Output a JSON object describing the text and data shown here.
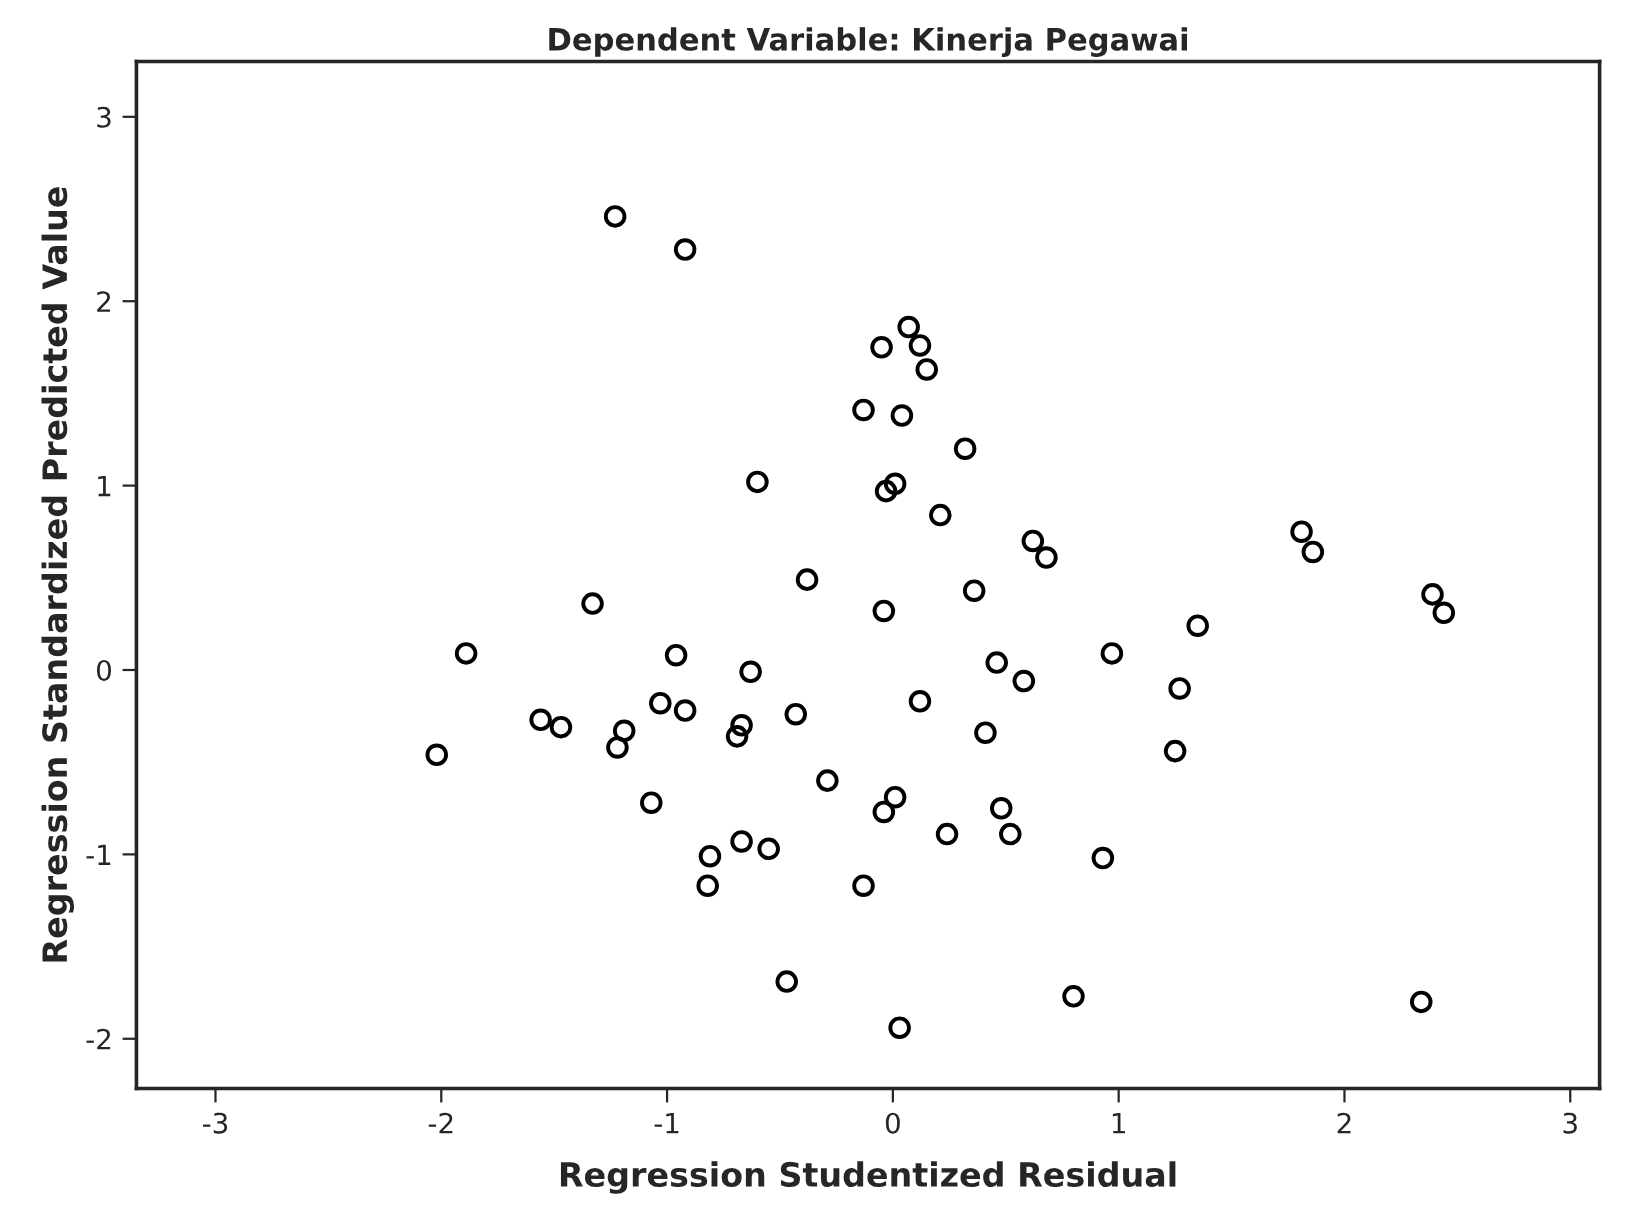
{
  "chart_data": {
    "type": "scatter",
    "title": "Dependent Variable: Kinerja Pegawai",
    "xlabel": "Regression Studentized Residual",
    "ylabel": "Regression Standardized Predicted Value",
    "series": [
      {
        "color": "#000000",
        "x": [
          -1.23,
          -0.92,
          0.07,
          -0.05,
          0.12,
          0.15,
          -0.13,
          0.04,
          0.32,
          -0.6,
          -0.03,
          0.01,
          0.21,
          0.62,
          0.68,
          -0.38,
          -1.33,
          -0.04,
          0.36,
          -1.89,
          -0.96,
          -0.63,
          0.46,
          0.58,
          0.12,
          -2.02,
          -1.56,
          -1.47,
          -1.19,
          -1.22,
          -1.03,
          -0.92,
          -0.67,
          -0.69,
          -0.43,
          0.41,
          -1.07,
          -0.29,
          0.01,
          -0.04,
          0.48,
          0.52,
          0.24,
          -0.67,
          -0.55,
          -0.81,
          -0.82,
          -0.13,
          -0.47,
          0.03,
          1.81,
          1.86,
          2.39,
          2.44,
          1.35,
          0.97,
          1.27,
          1.25,
          0.93,
          0.8,
          2.34
        ],
        "values": [
          2.46,
          2.28,
          1.86,
          1.75,
          1.76,
          1.63,
          1.41,
          1.38,
          1.2,
          1.02,
          0.97,
          1.01,
          0.84,
          0.7,
          0.61,
          0.49,
          0.36,
          0.32,
          0.43,
          0.09,
          0.08,
          -0.01,
          0.04,
          -0.06,
          -0.17,
          -0.46,
          -0.27,
          -0.31,
          -0.33,
          -0.42,
          -0.18,
          -0.22,
          -0.3,
          -0.36,
          -0.24,
          -0.34,
          -0.72,
          -0.6,
          -0.69,
          -0.77,
          -0.75,
          -0.89,
          -0.89,
          -0.93,
          -0.97,
          -1.01,
          -1.17,
          -1.17,
          -1.69,
          -1.94,
          0.75,
          0.64,
          0.41,
          0.31,
          0.24,
          0.09,
          -0.1,
          -0.44,
          -1.02,
          -1.77,
          -1.8
        ]
      }
    ],
    "marker": "circle",
    "xlim": [
      -3.35,
      3.13
    ],
    "ylim": [
      -2.27,
      3.3
    ],
    "xticks": [
      -3,
      -2,
      -1,
      0,
      1,
      2,
      3
    ],
    "yticks": [
      -2,
      -1,
      0,
      1,
      2,
      3
    ],
    "grid": false,
    "legend": false
  }
}
